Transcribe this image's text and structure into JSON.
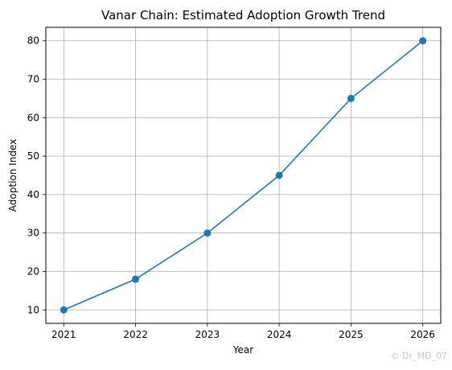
{
  "chart_data": {
    "type": "line",
    "title": "Vanar Chain: Estimated Adoption Growth Trend",
    "xlabel": "Year",
    "ylabel": "Adoption Index",
    "x": [
      2021,
      2022,
      2023,
      2024,
      2025,
      2026
    ],
    "series": [
      {
        "values": [
          10,
          18,
          30,
          45,
          65,
          80
        ],
        "color": "#1f77b4",
        "marker": "circle"
      }
    ],
    "xticks": [
      2021,
      2022,
      2023,
      2024,
      2025,
      2026
    ],
    "yticks": [
      10,
      20,
      30,
      40,
      50,
      60,
      70,
      80
    ],
    "xlim": [
      2020.75,
      2026.25
    ],
    "ylim": [
      6.5,
      83.5
    ],
    "grid": true,
    "grid_color": "#b0b0b0"
  },
  "watermark": "© Dr_MD_07"
}
